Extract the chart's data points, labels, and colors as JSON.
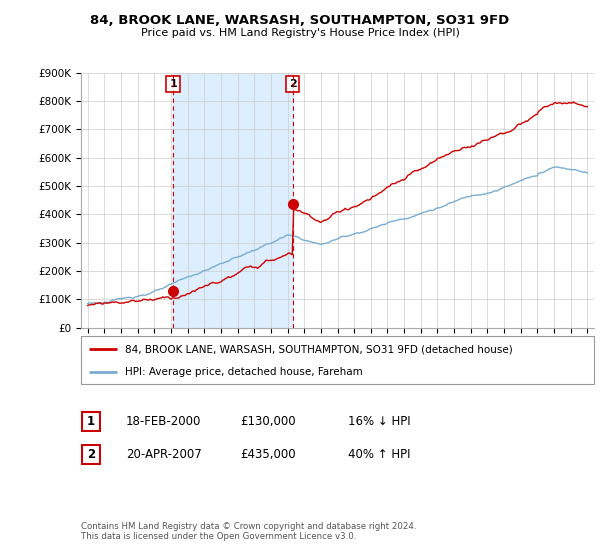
{
  "title": "84, BROOK LANE, WARSASH, SOUTHAMPTON, SO31 9FD",
  "subtitle": "Price paid vs. HM Land Registry's House Price Index (HPI)",
  "sale1_date": "18-FEB-2000",
  "sale1_price": 130000,
  "sale1_hpi": "16% ↓ HPI",
  "sale2_date": "20-APR-2007",
  "sale2_price": 435000,
  "sale2_hpi": "40% ↑ HPI",
  "legend_red": "84, BROOK LANE, WARSASH, SOUTHAMPTON, SO31 9FD (detached house)",
  "legend_blue": "HPI: Average price, detached house, Fareham",
  "footnote": "Contains HM Land Registry data © Crown copyright and database right 2024.\nThis data is licensed under the Open Government Licence v3.0.",
  "red_color": "#cc0000",
  "blue_color": "#7aadcf",
  "shade_color": "#ddeeff",
  "ylim": [
    0,
    900000
  ],
  "yticks": [
    0,
    100000,
    200000,
    300000,
    400000,
    500000,
    600000,
    700000,
    800000,
    900000
  ],
  "ytick_labels": [
    "£0",
    "£100K",
    "£200K",
    "£300K",
    "£400K",
    "£500K",
    "£600K",
    "£700K",
    "£800K",
    "£900K"
  ],
  "xmin": 1995,
  "xmax": 2025,
  "sale1_x": 2000.13,
  "sale2_x": 2007.3,
  "background": "#ffffff"
}
